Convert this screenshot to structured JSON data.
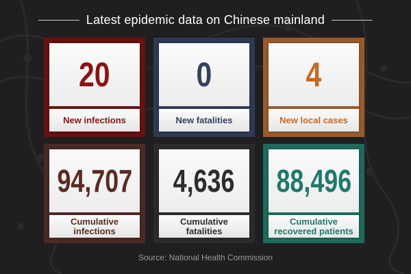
{
  "header": {
    "title": "Latest epidemic data on Chinese mainland"
  },
  "cards": [
    {
      "value": "20",
      "label": "New infections",
      "number_color": "#8b1313",
      "border_color": "#6b1010",
      "label_color": "#8b1313"
    },
    {
      "value": "0",
      "label": "New fatalities",
      "number_color": "#34415e",
      "border_color": "#2e3a55",
      "label_color": "#34415e"
    },
    {
      "value": "4",
      "label": "New local cases",
      "number_color": "#c56a22",
      "border_color": "#9a5a2a",
      "label_color": "#c56a22"
    },
    {
      "value": "94,707",
      "label": "Cumulative infections",
      "number_color": "#5a2b22",
      "border_color": "#4a2a24",
      "label_color": "#5a2b22"
    },
    {
      "value": "4,636",
      "label": "Cumulative fatalities",
      "number_color": "#2d2d2d",
      "border_color": "#2b2b2d",
      "label_color": "#2d2d2d"
    },
    {
      "value": "88,496",
      "label": "Cumulative recovered patients",
      "number_color": "#1f7a6a",
      "border_color": "#1e6b5d",
      "label_color": "#1f7a6a"
    }
  ],
  "footer": {
    "source": "Source: National Health Commission"
  }
}
